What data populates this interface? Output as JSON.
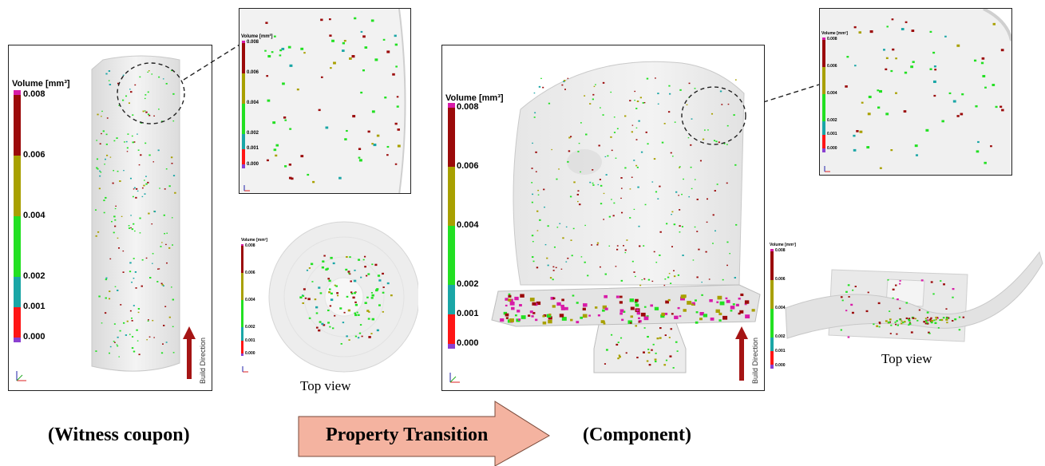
{
  "scale": {
    "title": "Volume [mm³]",
    "ticks": [
      "0.008",
      "0.006",
      "0.004",
      "0.002",
      "0.001",
      "0.000"
    ],
    "colors": {
      "magenta": "#d81ba8",
      "darkred": "#9b0a0a",
      "olive": "#a8a000",
      "green": "#22e022",
      "teal": "#1aa6a6",
      "red": "#ff1515",
      "purple": "#8a3fd0"
    }
  },
  "labels": {
    "build_direction": "Build Direction",
    "top_view": "Top view",
    "witness_caption": "(Witness coupon)",
    "component_caption": "(Component)",
    "transition_label": "Property Transition"
  },
  "icons": [
    "axes-triad-icon",
    "build-direction-arrow-icon",
    "zoom-circle-icon"
  ]
}
